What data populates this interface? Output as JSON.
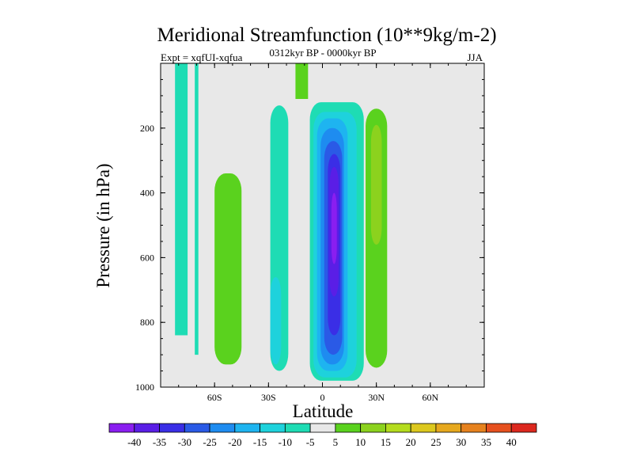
{
  "chart_data": {
    "type": "contour",
    "title": "Meridional Streamfunction (10**9kg/m-2)",
    "left_annotation": "Expt = xqfUI-xqfua",
    "center_annotation": "0312kyr BP - 0000kyr BP",
    "right_annotation": "JJA",
    "xlabel": "Latitude",
    "ylabel": "Pressure (in hPa)",
    "xlim": [
      -90,
      90
    ],
    "ylim": [
      1000,
      0
    ],
    "x_ticks": [
      {
        "value": -60,
        "label": "60S"
      },
      {
        "value": -30,
        "label": "30S"
      },
      {
        "value": 0,
        "label": "0"
      },
      {
        "value": 30,
        "label": "30N"
      },
      {
        "value": 60,
        "label": "60N"
      }
    ],
    "y_ticks": [
      {
        "value": 200,
        "label": "200"
      },
      {
        "value": 400,
        "label": "400"
      },
      {
        "value": 600,
        "label": "600"
      },
      {
        "value": 800,
        "label": "800"
      },
      {
        "value": 1000,
        "label": "1000"
      }
    ],
    "background_color": "#e8e8e8",
    "colorbar": {
      "labels": [
        "-40",
        "-35",
        "-30",
        "-25",
        "-20",
        "-15",
        "-10",
        "-5",
        "5",
        "10",
        "15",
        "20",
        "25",
        "30",
        "35",
        "40"
      ],
      "colors": [
        "#8a1ef0",
        "#5a1ee6",
        "#3a2ee6",
        "#2a5ae6",
        "#1e8cf0",
        "#1eb4f0",
        "#1ed2dc",
        "#1edcb4",
        "#e8e8e8",
        "#5ad21e",
        "#8cd21e",
        "#b4dc1e",
        "#dcc81e",
        "#e6a81e",
        "#e6821e",
        "#e6501e",
        "#dc281e"
      ]
    },
    "regions": [
      {
        "name": "sh-polar-strip-a",
        "level": "-5",
        "color": "#1edcb4",
        "lat": [
          -82,
          -75
        ],
        "p": [
          0,
          840
        ]
      },
      {
        "name": "sh-polar-strip-b",
        "level": "-5",
        "color": "#1edcb4",
        "lat": [
          -71,
          -69
        ],
        "p": [
          0,
          900
        ]
      },
      {
        "name": "sh-midlat-positive",
        "level": "5",
        "color": "#5ad21e",
        "lat": [
          -60,
          -45
        ],
        "p": [
          340,
          930
        ]
      },
      {
        "name": "sh-subtropical-band",
        "level": "-5",
        "color": "#1edcb4",
        "lat": [
          -29,
          -19
        ],
        "p": [
          130,
          950
        ]
      },
      {
        "name": "sh-subtropical-core",
        "level": "-10",
        "color": "#1ed2dc",
        "lat": [
          -29,
          -23
        ],
        "p": [
          660,
          930
        ]
      },
      {
        "name": "sh-upper-positive",
        "level": "5",
        "color": "#5ad21e",
        "lat": [
          -15,
          -8
        ],
        "p": [
          0,
          110
        ]
      },
      {
        "name": "equatorial-cell-outer",
        "level": "-5",
        "color": "#1edcb4",
        "lat": [
          -7,
          23
        ],
        "p": [
          120,
          980
        ]
      },
      {
        "name": "equatorial-cell-10",
        "level": "-10",
        "color": "#1ed2dc",
        "lat": [
          -5,
          19
        ],
        "p": [
          150,
          970
        ]
      },
      {
        "name": "equatorial-cell-15",
        "level": "-15",
        "color": "#1eb4f0",
        "lat": [
          -3,
          14
        ],
        "p": [
          170,
          950
        ]
      },
      {
        "name": "equatorial-cell-20",
        "level": "-20",
        "color": "#1e8cf0",
        "lat": [
          -1,
          12
        ],
        "p": [
          200,
          930
        ]
      },
      {
        "name": "equatorial-cell-25",
        "level": "-25",
        "color": "#2a5ae6",
        "lat": [
          1,
          11
        ],
        "p": [
          240,
          900
        ]
      },
      {
        "name": "equatorial-cell-30",
        "level": "-30",
        "color": "#3a2ee6",
        "lat": [
          3,
          10
        ],
        "p": [
          280,
          840
        ]
      },
      {
        "name": "equatorial-cell-35",
        "level": "-35",
        "color": "#5a1ee6",
        "lat": [
          4,
          9
        ],
        "p": [
          320,
          720
        ]
      },
      {
        "name": "equatorial-cell-40",
        "level": "-40",
        "color": "#8a1ef0",
        "lat": [
          5,
          8
        ],
        "p": [
          400,
          620
        ]
      },
      {
        "name": "nh-subtropical-positive",
        "level": "5",
        "color": "#5ad21e",
        "lat": [
          24,
          36
        ],
        "p": [
          140,
          940
        ]
      },
      {
        "name": "nh-subtropical-core",
        "level": "10",
        "color": "#8cd21e",
        "lat": [
          27,
          33
        ],
        "p": [
          190,
          560
        ]
      }
    ]
  }
}
